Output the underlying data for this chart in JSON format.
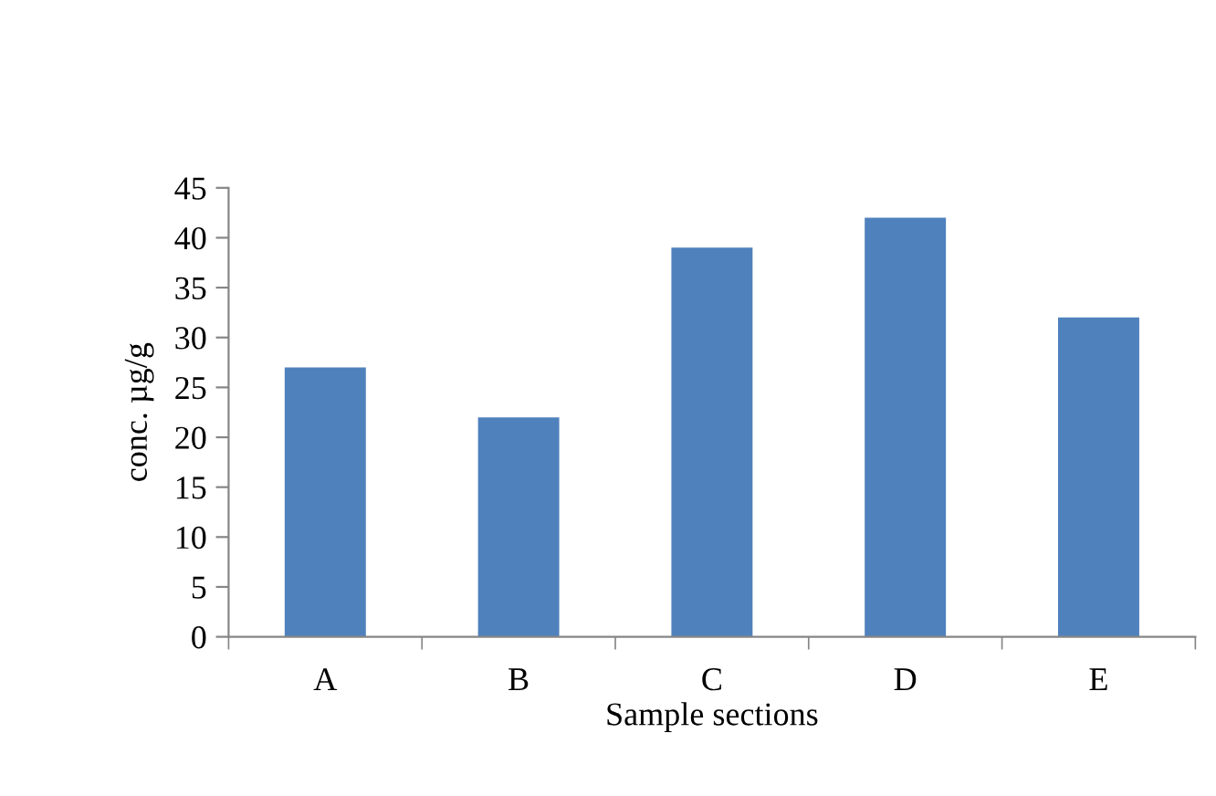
{
  "chart_data": {
    "type": "bar",
    "xlabel": "Sample sections",
    "ylabel": "conc. µg/g",
    "categories": [
      "A",
      "B",
      "C",
      "D",
      "E"
    ],
    "values": [
      27,
      22,
      39,
      42,
      32
    ],
    "color": "#4f81bd",
    "ylim": [
      0,
      45
    ],
    "yticks": [
      0,
      5,
      10,
      15,
      20,
      25,
      30,
      35,
      40,
      45
    ],
    "grid": false
  }
}
